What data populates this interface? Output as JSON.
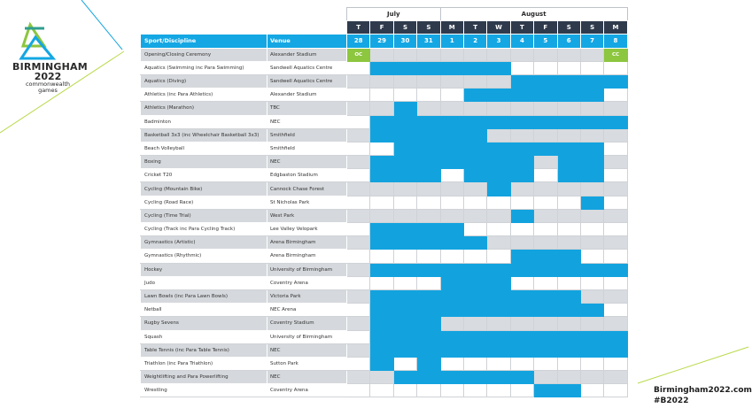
{
  "brand": {
    "line1": "BIRMINGHAM",
    "line2": "2022",
    "line3": "commonwealth",
    "line4": "games",
    "colors": {
      "accent": "#14a7e3",
      "ceremony": "#8dc63f",
      "dark": "#2f3b4d"
    }
  },
  "footer": {
    "url": "Birmingham2022.com",
    "hashtag": "#B2022"
  },
  "schedule": {
    "months": [
      {
        "label": "July",
        "span": 4
      },
      {
        "label": "August",
        "span": 8
      }
    ],
    "weekdays": [
      "T",
      "F",
      "S",
      "S",
      "M",
      "T",
      "W",
      "T",
      "F",
      "S",
      "S",
      "M"
    ],
    "header": {
      "sport": "Sport/Discipline",
      "venue": "Venue"
    },
    "dates": [
      "28",
      "29",
      "30",
      "31",
      "1",
      "2",
      "3",
      "4",
      "5",
      "6",
      "7",
      "8"
    ],
    "rows": [
      {
        "sport": "Opening/Closing Ceremony",
        "venue": "Alexander Stadium",
        "days": [
          2,
          0,
          0,
          0,
          0,
          0,
          0,
          0,
          0,
          0,
          0,
          2
        ]
      },
      {
        "sport": "Aquatics (Swimming inc Para Swimming)",
        "venue": "Sandwell Aquatics Centre",
        "days": [
          0,
          1,
          1,
          1,
          1,
          1,
          1,
          0,
          0,
          0,
          0,
          0
        ]
      },
      {
        "sport": "Aquatics (Diving)",
        "venue": "Sandwell Aquatics Centre",
        "days": [
          0,
          0,
          0,
          0,
          0,
          0,
          0,
          1,
          1,
          1,
          1,
          1
        ]
      },
      {
        "sport": "Athletics (inc Para Athletics)",
        "venue": "Alexander Stadium",
        "days": [
          0,
          0,
          0,
          0,
          0,
          1,
          1,
          1,
          1,
          1,
          1,
          0
        ]
      },
      {
        "sport": "Athletics (Marathon)",
        "venue": "TBC",
        "days": [
          0,
          0,
          1,
          0,
          0,
          0,
          0,
          0,
          0,
          0,
          0,
          0
        ]
      },
      {
        "sport": "Badminton",
        "venue": "NEC",
        "days": [
          0,
          1,
          1,
          1,
          1,
          1,
          1,
          1,
          1,
          1,
          1,
          1
        ]
      },
      {
        "sport": "Basketball 3x3 (inc Wheelchair Basketball 3x3)",
        "venue": "Smithfield",
        "days": [
          0,
          1,
          1,
          1,
          1,
          1,
          0,
          0,
          0,
          0,
          0,
          0
        ]
      },
      {
        "sport": "Beach Volleyball",
        "venue": "Smithfield",
        "days": [
          0,
          0,
          1,
          1,
          1,
          1,
          1,
          1,
          1,
          1,
          1,
          0
        ]
      },
      {
        "sport": "Boxing",
        "venue": "NEC",
        "days": [
          0,
          1,
          1,
          1,
          1,
          1,
          1,
          1,
          0,
          1,
          1,
          0
        ]
      },
      {
        "sport": "Cricket T20",
        "venue": "Edgbaston Stadium",
        "days": [
          0,
          1,
          1,
          1,
          0,
          1,
          1,
          1,
          0,
          1,
          1,
          0
        ]
      },
      {
        "sport": "Cycling (Mountain Bike)",
        "venue": "Cannock Chase Forest",
        "days": [
          0,
          0,
          0,
          0,
          0,
          0,
          1,
          0,
          0,
          0,
          0,
          0
        ]
      },
      {
        "sport": "Cycling (Road Race)",
        "venue": "St Nicholas Park",
        "days": [
          0,
          0,
          0,
          0,
          0,
          0,
          0,
          0,
          0,
          0,
          1,
          0
        ]
      },
      {
        "sport": "Cycling (Time Trial)",
        "venue": "West Park",
        "days": [
          0,
          0,
          0,
          0,
          0,
          0,
          0,
          1,
          0,
          0,
          0,
          0
        ]
      },
      {
        "sport": "Cycling (Track inc Para Cycling Track)",
        "venue": "Lee Valley Velopark",
        "days": [
          0,
          1,
          1,
          1,
          1,
          0,
          0,
          0,
          0,
          0,
          0,
          0
        ]
      },
      {
        "sport": "Gymnastics (Artistic)",
        "venue": "Arena Birmingham",
        "days": [
          0,
          1,
          1,
          1,
          1,
          1,
          0,
          0,
          0,
          0,
          0,
          0
        ]
      },
      {
        "sport": "Gymnastics (Rhythmic)",
        "venue": "Arena Birmingham",
        "days": [
          0,
          0,
          0,
          0,
          0,
          0,
          0,
          1,
          1,
          1,
          0,
          0
        ]
      },
      {
        "sport": "Hockey",
        "venue": "University of Birmingham",
        "days": [
          0,
          1,
          1,
          1,
          1,
          1,
          1,
          1,
          1,
          1,
          1,
          1
        ]
      },
      {
        "sport": "Judo",
        "venue": "Coventry Arena",
        "days": [
          0,
          0,
          0,
          0,
          1,
          1,
          1,
          0,
          0,
          0,
          0,
          0
        ]
      },
      {
        "sport": "Lawn Bowls (inc Para Lawn Bowls)",
        "venue": "Victoria Park",
        "days": [
          0,
          1,
          1,
          1,
          1,
          1,
          1,
          1,
          1,
          1,
          0,
          0
        ]
      },
      {
        "sport": "Netball",
        "venue": "NEC Arena",
        "days": [
          0,
          1,
          1,
          1,
          1,
          1,
          1,
          1,
          1,
          1,
          1,
          0
        ]
      },
      {
        "sport": "Rugby Sevens",
        "venue": "Coventry Stadium",
        "days": [
          0,
          1,
          1,
          1,
          0,
          0,
          0,
          0,
          0,
          0,
          0,
          0
        ]
      },
      {
        "sport": "Squash",
        "venue": "University of Birmingham",
        "days": [
          0,
          1,
          1,
          1,
          1,
          1,
          1,
          1,
          1,
          1,
          1,
          1
        ]
      },
      {
        "sport": "Table Tennis (inc Para Table Tennis)",
        "venue": "NEC",
        "days": [
          0,
          1,
          1,
          1,
          1,
          1,
          1,
          1,
          1,
          1,
          1,
          1
        ]
      },
      {
        "sport": "Triathlon (inc Para Triathlon)",
        "venue": "Sutton Park",
        "days": [
          0,
          1,
          0,
          1,
          0,
          0,
          0,
          0,
          0,
          0,
          0,
          0
        ]
      },
      {
        "sport": "Weightlifting and Para Powerlifting",
        "venue": "NEC",
        "days": [
          0,
          0,
          1,
          1,
          1,
          1,
          1,
          1,
          0,
          0,
          0,
          0
        ]
      },
      {
        "sport": "Wrestling",
        "venue": "Coventry Arena",
        "days": [
          0,
          0,
          0,
          0,
          0,
          0,
          0,
          0,
          1,
          1,
          0,
          0
        ]
      }
    ],
    "ceremony_label_open": "OC",
    "ceremony_label_close": "CC"
  }
}
